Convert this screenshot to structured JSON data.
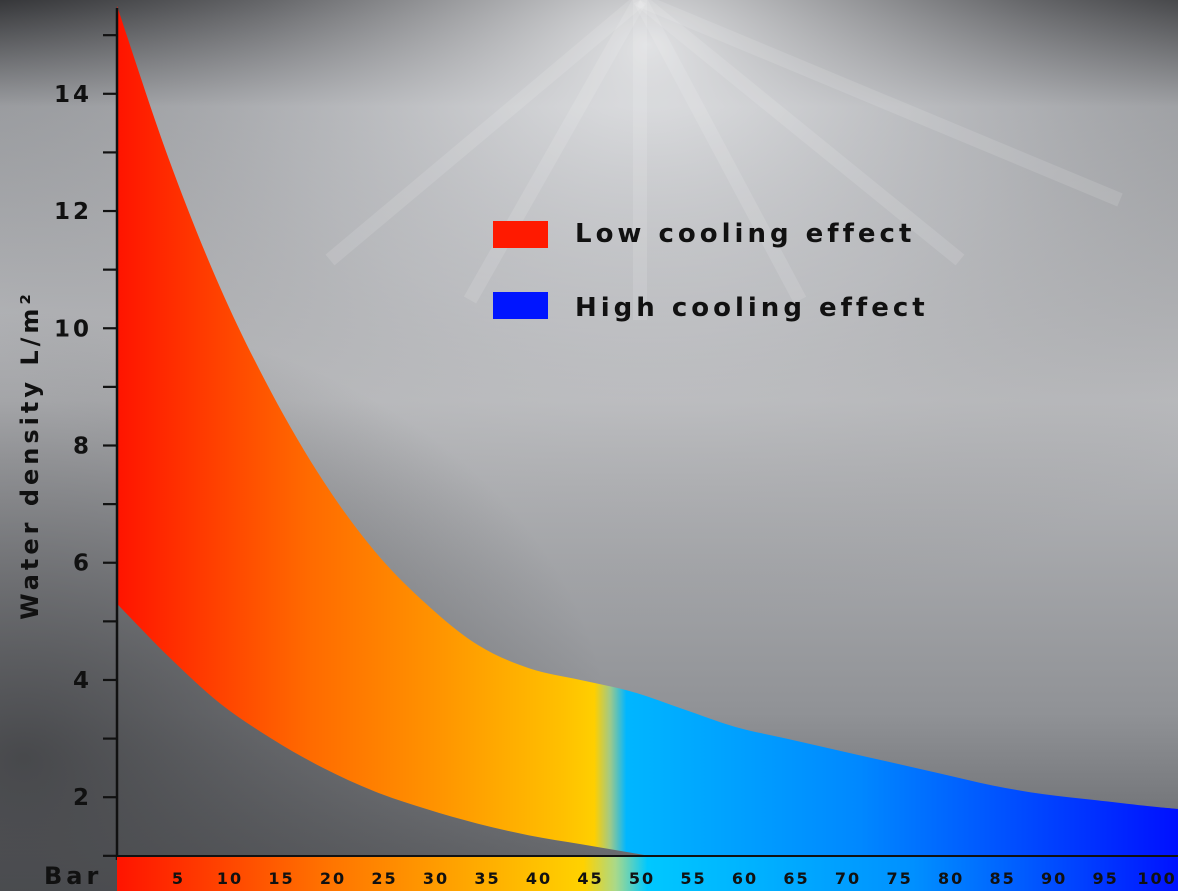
{
  "chart_data": {
    "type": "area",
    "ylabel": "Water density L/m²",
    "xlabel": "Bar",
    "x_ticks": [
      5,
      10,
      15,
      20,
      25,
      30,
      35,
      40,
      45,
      50,
      55,
      60,
      65,
      70,
      75,
      80,
      85,
      90,
      95,
      100
    ],
    "y_ticks": [
      2,
      4,
      6,
      8,
      10,
      12,
      14
    ],
    "xlim": [
      0,
      103
    ],
    "ylim": [
      0.4,
      15.6
    ],
    "grid": false,
    "legend_position": "top-center",
    "band": {
      "x": [
        0,
        5,
        10,
        15,
        20,
        25,
        30,
        35,
        40,
        45,
        50,
        55,
        60,
        65,
        70,
        75,
        80,
        85,
        90,
        95,
        100,
        103
      ],
      "upper": [
        15.5,
        12.9,
        10.7,
        8.9,
        7.4,
        6.2,
        5.3,
        4.6,
        4.2,
        4.0,
        3.8,
        3.5,
        3.2,
        3.0,
        2.8,
        2.6,
        2.4,
        2.2,
        2.05,
        1.95,
        1.85,
        1.8
      ],
      "lower": [
        5.3,
        4.4,
        3.6,
        3.0,
        2.5,
        2.1,
        1.8,
        1.55,
        1.35,
        1.2,
        1.05,
        0.9,
        0.8,
        0.75,
        0.72,
        0.7,
        0.68,
        0.67,
        0.66,
        0.65,
        0.65,
        0.65
      ]
    },
    "series": [
      {
        "name": "Low cooling effect",
        "x_range": [
          0,
          49
        ],
        "color": "#ff1a00"
      },
      {
        "name": "High cooling effect",
        "x_range": [
          49,
          103
        ],
        "color": "#0015ff"
      }
    ]
  },
  "colors": {
    "low": "#ff1a00",
    "high": "#0015ff",
    "text": "#111111"
  }
}
